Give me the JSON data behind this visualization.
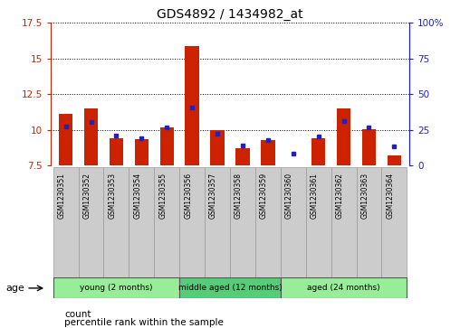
{
  "title": "GDS4892 / 1434982_at",
  "samples": [
    "GSM1230351",
    "GSM1230352",
    "GSM1230353",
    "GSM1230354",
    "GSM1230355",
    "GSM1230356",
    "GSM1230357",
    "GSM1230358",
    "GSM1230359",
    "GSM1230360",
    "GSM1230361",
    "GSM1230362",
    "GSM1230363",
    "GSM1230364"
  ],
  "red_values": [
    11.1,
    11.5,
    9.4,
    9.35,
    10.15,
    15.9,
    10.0,
    8.75,
    9.3,
    7.55,
    9.4,
    11.5,
    10.05,
    8.2
  ],
  "blue_values_left_scale": [
    10.25,
    10.55,
    9.6,
    9.45,
    10.15,
    11.55,
    9.75,
    8.9,
    9.3,
    8.35,
    9.55,
    10.65,
    10.15,
    8.85
  ],
  "ylim_left": [
    7.5,
    17.5
  ],
  "ylim_right": [
    0,
    100
  ],
  "yticks_left": [
    7.5,
    10.0,
    12.5,
    15.0,
    17.5
  ],
  "yticks_right": [
    0,
    25,
    50,
    75,
    100
  ],
  "ytick_labels_left": [
    "7.5",
    "10",
    "12.5",
    "15",
    "17.5"
  ],
  "ytick_labels_right": [
    "0",
    "25",
    "50",
    "75",
    "100%"
  ],
  "hlines": [
    10.0,
    12.5,
    15.0,
    17.5
  ],
  "groups": [
    {
      "label": "young (2 months)",
      "start": 0,
      "end": 5,
      "color": "#98EE98"
    },
    {
      "label": "middle aged (12 months)",
      "start": 5,
      "end": 9,
      "color": "#55CC77"
    },
    {
      "label": "aged (24 months)",
      "start": 9,
      "end": 14,
      "color": "#98EE98"
    }
  ],
  "age_label": "age",
  "legend_red": "count",
  "legend_blue": "percentile rank within the sample",
  "bar_color": "#CC2200",
  "blue_color": "#2222BB",
  "tick_label_bg": "#CCCCCC",
  "plot_bg": "#FFFFFF",
  "left_tick_color": "#CC2200",
  "right_tick_color": "#2222BB",
  "base_value": 7.5
}
